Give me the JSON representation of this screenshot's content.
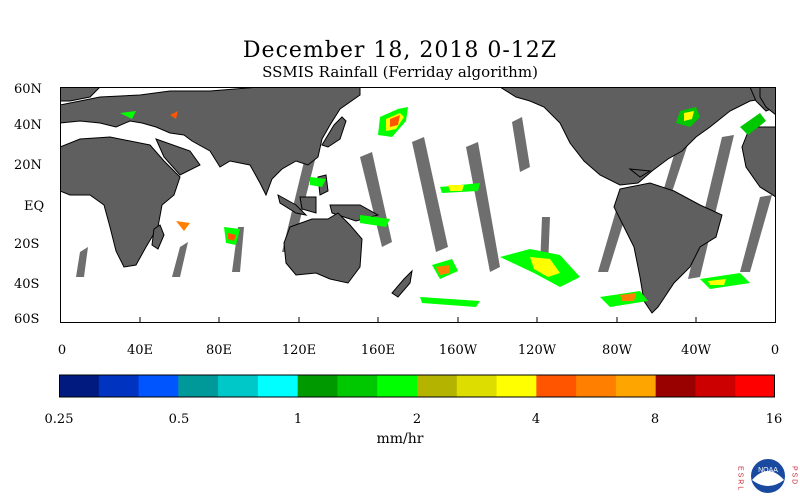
{
  "title": "December 18, 2018 0-12Z",
  "subtitle": "SSMIS Rainfall (Ferriday algorithm)",
  "lat_labels": [
    "60N",
    "40N",
    "20N",
    "EQ",
    "20S",
    "40S",
    "60S"
  ],
  "lon_labels": [
    "0",
    "40E",
    "80E",
    "120E",
    "160E",
    "160W",
    "120W",
    "80W",
    "40W",
    "0"
  ],
  "colorbar": {
    "units": "mm/hr",
    "tick_labels": [
      "0.25",
      "0.5",
      "1",
      "2",
      "4",
      "8",
      "16"
    ],
    "colors": [
      "#001a80",
      "#0033c0",
      "#0055ff",
      "#009999",
      "#00c8c8",
      "#00ffff",
      "#009900",
      "#00c800",
      "#00ff00",
      "#b3b300",
      "#dddd00",
      "#ffff00",
      "#ff5500",
      "#ff7f00",
      "#ffa500",
      "#990000",
      "#cc0000",
      "#ff0000"
    ]
  },
  "colors": {
    "land": "#5f5f5f",
    "ocean": "#ffffff",
    "swath_gap": "#6e6e6e"
  },
  "logo": {
    "left_letters": "E S R L",
    "right_letters": "P S D",
    "badge": "NOAA"
  }
}
